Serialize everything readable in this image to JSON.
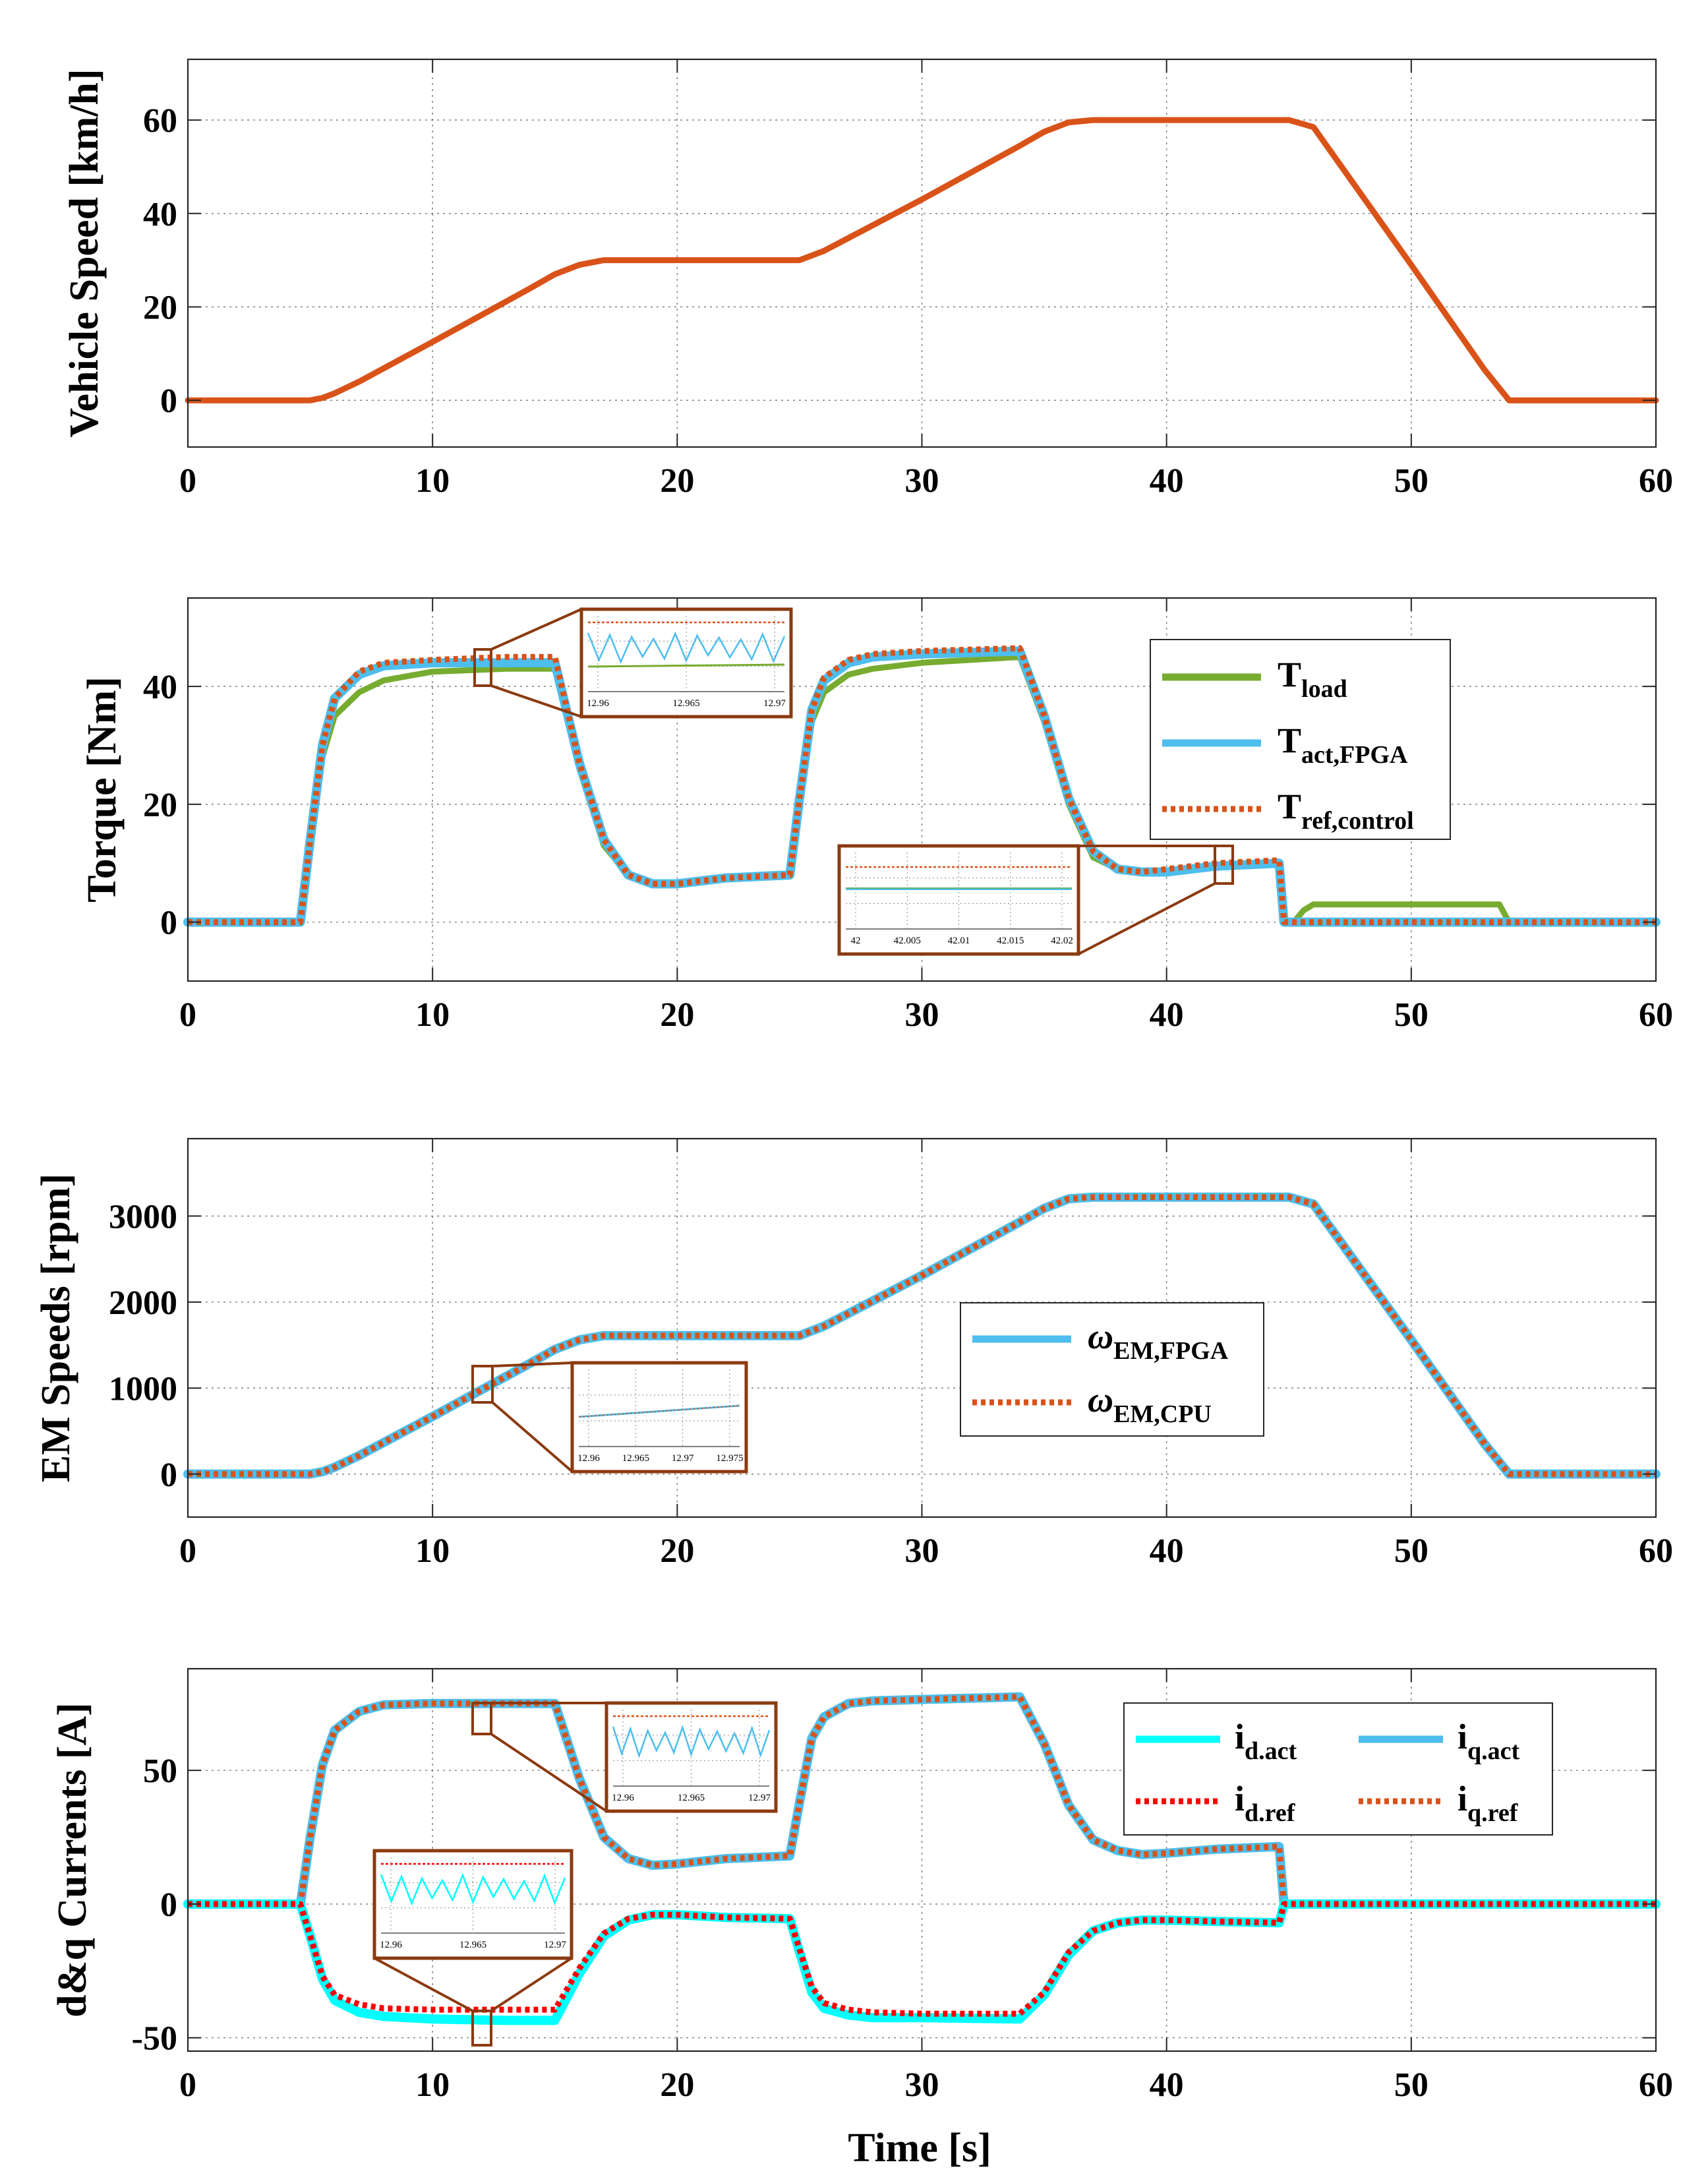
{
  "figure": {
    "xlabel": "Time [s]"
  },
  "colors": {
    "orange": "#d95319",
    "blue": "#4dbeee",
    "green": "#77ac30",
    "cyan": "#00ffff",
    "red": "#ff0000",
    "inset_border": "#8b3a0f"
  },
  "chart_data": [
    {
      "id": "speed",
      "type": "line",
      "title": "",
      "xlabel": "",
      "ylabel": "Vehicle Speed [km/h]",
      "xlim": [
        0,
        60
      ],
      "ylim": [
        -10,
        73
      ],
      "xticks": [
        0,
        10,
        20,
        30,
        40,
        50,
        60
      ],
      "yticks": [
        0,
        20,
        40,
        60
      ],
      "grid": true,
      "series": [
        {
          "name": "Vehicle Speed",
          "color": "#d95319",
          "style": "solid",
          "x": [
            0,
            5,
            5.5,
            6,
            7,
            10,
            14,
            15,
            16,
            17,
            18,
            25,
            26,
            30,
            34,
            35,
            36,
            37,
            38,
            45,
            46,
            50,
            53,
            54,
            60
          ],
          "y": [
            0,
            0,
            0.5,
            1.5,
            4,
            12.5,
            24,
            27,
            29,
            30,
            30,
            30,
            32,
            43,
            54.5,
            57.5,
            59.5,
            60,
            60,
            60,
            58.5,
            29,
            6.5,
            0,
            0
          ]
        }
      ]
    },
    {
      "id": "torque",
      "type": "line",
      "title": "",
      "xlabel": "",
      "ylabel": "Torque [Nm]",
      "xlim": [
        0,
        60
      ],
      "ylim": [
        -10,
        55
      ],
      "xticks": [
        0,
        10,
        20,
        30,
        40,
        50,
        60
      ],
      "yticks": [
        0,
        20,
        40
      ],
      "grid": true,
      "legend": {
        "placement": "upper-right",
        "entries": [
          {
            "main": "T",
            "sub": "load",
            "color": "#77ac30",
            "style": "solid"
          },
          {
            "main": "T",
            "sub": "act,FPGA",
            "color": "#4dbeee",
            "style": "solid"
          },
          {
            "main": "T",
            "sub": "ref,control",
            "color": "#d95319",
            "style": "dotted"
          }
        ]
      },
      "insets": [
        {
          "xticks": [
            "12.96",
            "12.965",
            "12.97"
          ]
        },
        {
          "xticks": [
            "42",
            "42.005",
            "42.01",
            "42.015",
            "42.02"
          ]
        }
      ],
      "series": [
        {
          "name": "T_load",
          "color": "#77ac30",
          "style": "solid",
          "x": [
            0,
            4.6,
            5,
            5.5,
            6,
            7,
            8,
            10,
            13,
            15,
            16,
            17,
            18,
            19,
            20,
            22,
            24.6,
            25,
            25.5,
            26,
            27,
            28,
            30,
            34,
            35,
            36,
            37,
            38,
            39,
            40,
            42,
            44.6,
            44.8,
            45.2,
            45.6,
            46,
            47,
            50,
            53.6,
            54,
            60
          ],
          "y": [
            0,
            0,
            12,
            28,
            35,
            39,
            41,
            42.5,
            43,
            43,
            26,
            13,
            8,
            6.5,
            6.5,
            7.5,
            8,
            20,
            34,
            39,
            42,
            43,
            44,
            45,
            34,
            20,
            11,
            9,
            8.5,
            8.5,
            9.5,
            10,
            0,
            0,
            2,
            3,
            3,
            3,
            3,
            0,
            0
          ]
        },
        {
          "name": "T_act,FPGA",
          "color": "#4dbeee",
          "style": "solid",
          "x": [
            0,
            4.6,
            5,
            5.5,
            6,
            7,
            8,
            10,
            13,
            15,
            16,
            17,
            18,
            19,
            20,
            22,
            24.6,
            25,
            25.5,
            26,
            27,
            28,
            30,
            34,
            35,
            36,
            37,
            38,
            39,
            40,
            42,
            44.6,
            44.8,
            60
          ],
          "y": [
            0,
            0,
            14,
            30,
            38,
            42,
            43.5,
            44,
            44,
            44,
            27,
            14,
            8,
            6.5,
            6.5,
            7.5,
            8,
            21,
            36,
            41,
            44,
            45,
            45.5,
            46,
            35,
            21,
            12,
            9,
            8.5,
            8.5,
            9.5,
            10,
            0,
            0
          ]
        },
        {
          "name": "T_ref,control",
          "color": "#d95319",
          "style": "dotted",
          "x": [
            0,
            4.6,
            5,
            5.5,
            6,
            7,
            8,
            10,
            13,
            15,
            16,
            17,
            18,
            19,
            20,
            22,
            24.6,
            25,
            25.5,
            26,
            27,
            28,
            30,
            34,
            35,
            36,
            37,
            38,
            39,
            40,
            42,
            44.6,
            44.8,
            60
          ],
          "y": [
            0,
            0,
            14,
            30,
            38,
            42.5,
            44,
            44.5,
            45,
            45,
            27,
            14,
            8,
            6.5,
            6.5,
            7.5,
            8,
            21,
            36,
            41.5,
            44.5,
            45.5,
            46,
            46.5,
            35,
            21,
            12,
            9,
            8.5,
            9,
            10,
            10.5,
            0,
            0
          ]
        }
      ]
    },
    {
      "id": "emspeed",
      "type": "line",
      "title": "",
      "xlabel": "",
      "ylabel": "EM Speeds [rpm]",
      "xlim": [
        0,
        60
      ],
      "ylim": [
        -500,
        3900
      ],
      "xticks": [
        0,
        10,
        20,
        30,
        40,
        50,
        60
      ],
      "yticks": [
        0,
        1000,
        2000,
        3000
      ],
      "grid": true,
      "legend": {
        "placement": "center-right",
        "entries": [
          {
            "main": "ω",
            "sub": "EM,FPGA",
            "color": "#4dbeee",
            "style": "solid"
          },
          {
            "main": "ω",
            "sub": "EM,CPU",
            "color": "#d95319",
            "style": "dotted"
          }
        ]
      },
      "insets": [
        {
          "xticks": [
            "12.96",
            "12.965",
            "12.97",
            "12.975"
          ]
        }
      ],
      "series": [
        {
          "name": "ω_EM,FPGA",
          "color": "#4dbeee",
          "style": "solid",
          "x": [
            0,
            5,
            5.5,
            6,
            7,
            10,
            14,
            15,
            16,
            17,
            18,
            25,
            26,
            30,
            34,
            35,
            36,
            37,
            38,
            45,
            46,
            50,
            53,
            54,
            60
          ],
          "y": [
            0,
            0,
            27,
            80,
            215,
            670,
            1290,
            1450,
            1560,
            1610,
            1610,
            1610,
            1720,
            2310,
            2930,
            3090,
            3200,
            3220,
            3220,
            3220,
            3140,
            1560,
            350,
            0,
            0
          ]
        },
        {
          "name": "ω_EM,CPU",
          "color": "#d95319",
          "style": "dotted",
          "x": [
            0,
            5,
            5.5,
            6,
            7,
            10,
            14,
            15,
            16,
            17,
            18,
            25,
            26,
            30,
            34,
            35,
            36,
            37,
            38,
            45,
            46,
            50,
            53,
            54,
            60
          ],
          "y": [
            0,
            0,
            27,
            80,
            215,
            670,
            1290,
            1450,
            1560,
            1610,
            1610,
            1610,
            1720,
            2310,
            2930,
            3090,
            3200,
            3220,
            3220,
            3220,
            3140,
            1560,
            350,
            0,
            0
          ]
        }
      ]
    },
    {
      "id": "currents",
      "type": "line",
      "title": "",
      "xlabel": "Time [s]",
      "ylabel": "d&q Currents [A]",
      "xlim": [
        0,
        60
      ],
      "ylim": [
        -55,
        88
      ],
      "xticks": [
        0,
        10,
        20,
        30,
        40,
        50,
        60
      ],
      "yticks": [
        -50,
        0,
        50
      ],
      "grid": true,
      "legend": {
        "placement": "upper-right",
        "entries": [
          {
            "main": "i",
            "sub": "d.act",
            "color": "#00ffff",
            "style": "solid"
          },
          {
            "main": "i",
            "sub": "q.act",
            "color": "#4dbeee",
            "style": "solid"
          },
          {
            "main": "i",
            "sub": "d.ref",
            "color": "#ff0000",
            "style": "dotted"
          },
          {
            "main": "i",
            "sub": "q.ref",
            "color": "#d95319",
            "style": "dotted"
          }
        ]
      },
      "insets": [
        {
          "xticks": [
            "12.96",
            "12.965",
            "12.97"
          ]
        },
        {
          "xticks": [
            "12.96",
            "12.965",
            "12.97"
          ]
        }
      ],
      "series": [
        {
          "name": "i_q.act",
          "color": "#4dbeee",
          "style": "solid",
          "x": [
            0,
            4.6,
            5,
            5.5,
            6,
            7,
            8,
            10,
            13,
            15,
            16,
            17,
            18,
            19,
            20,
            22,
            24.6,
            25,
            25.5,
            26,
            27,
            28,
            30,
            34,
            35,
            36,
            37,
            38,
            39,
            40,
            42,
            44.6,
            44.8,
            60
          ],
          "y": [
            0,
            0,
            25,
            52,
            65,
            72,
            74.5,
            75,
            75,
            75,
            47,
            25,
            17,
            14.5,
            15,
            17,
            18,
            38,
            62,
            70,
            75,
            76,
            76.5,
            77.5,
            60,
            37,
            24,
            20,
            18.5,
            19,
            20.5,
            21.5,
            0,
            0
          ]
        },
        {
          "name": "i_q.ref",
          "color": "#d95319",
          "style": "dotted",
          "x": [
            0,
            4.6,
            5,
            5.5,
            6,
            7,
            8,
            10,
            13,
            15,
            16,
            17,
            18,
            19,
            20,
            22,
            24.6,
            25,
            25.5,
            26,
            27,
            28,
            30,
            34,
            35,
            36,
            37,
            38,
            39,
            40,
            42,
            44.6,
            44.8,
            60
          ],
          "y": [
            0,
            0,
            25,
            52,
            65,
            72,
            74.5,
            75,
            75,
            75,
            47,
            25,
            17,
            14.5,
            15,
            17,
            18,
            38,
            62,
            70,
            75,
            76,
            76.5,
            77.5,
            60,
            37,
            24,
            20,
            18.5,
            19,
            20.5,
            21.5,
            0,
            0
          ]
        },
        {
          "name": "i_d.act",
          "color": "#00ffff",
          "style": "solid",
          "x": [
            0,
            4.6,
            5,
            5.5,
            6,
            7,
            8,
            10,
            13,
            15,
            16,
            17,
            18,
            19,
            20,
            22,
            24.6,
            25,
            25.5,
            26,
            27,
            28,
            30,
            34,
            35,
            36,
            37,
            38,
            39,
            40,
            42,
            44.6,
            44.8,
            60
          ],
          "y": [
            0,
            0,
            -12,
            -28,
            -36,
            -40.5,
            -42,
            -43,
            -43.5,
            -43.5,
            -26,
            -12,
            -6,
            -4,
            -4,
            -5,
            -5.5,
            -18,
            -33,
            -39,
            -41.5,
            -42.5,
            -42.5,
            -43,
            -34,
            -19,
            -10,
            -7,
            -6,
            -6,
            -6.5,
            -7,
            0,
            0
          ]
        },
        {
          "name": "i_d.ref",
          "color": "#ff0000",
          "style": "dotted",
          "x": [
            0,
            4.6,
            5,
            5.5,
            6,
            7,
            8,
            10,
            13,
            15,
            16,
            17,
            18,
            19,
            20,
            22,
            24.6,
            25,
            25.5,
            26,
            27,
            28,
            30,
            34,
            35,
            36,
            37,
            38,
            39,
            40,
            42,
            44.6,
            44.8,
            60
          ],
          "y": [
            0,
            0,
            -12,
            -27,
            -34,
            -37.5,
            -39,
            -39.5,
            -39.5,
            -39.5,
            -24,
            -11,
            -5.5,
            -4,
            -4,
            -5,
            -5.5,
            -17,
            -31,
            -37,
            -39.5,
            -40.5,
            -41,
            -41,
            -33,
            -18,
            -10,
            -7,
            -6,
            -6,
            -6.5,
            -7,
            0,
            0
          ]
        }
      ]
    }
  ]
}
